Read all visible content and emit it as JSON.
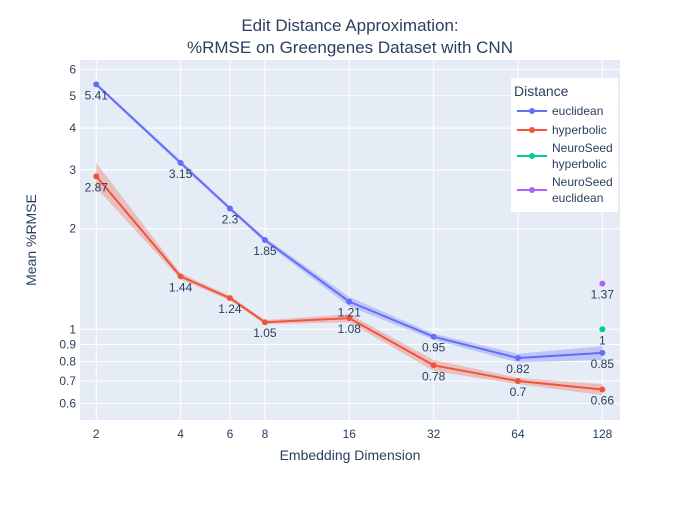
{
  "chart_data": {
    "type": "line",
    "title_line1": "Edit Distance Approximation:",
    "title_line2": "%RMSE on Greengenes Dataset with CNN",
    "xlabel": "Embedding Dimension",
    "ylabel": "Mean %RMSE",
    "x_scale": "log2",
    "y_scale": "log10",
    "xlim": [
      1.75,
      148
    ],
    "ylim": [
      0.535,
      6.4
    ],
    "x_ticks": [
      2,
      4,
      6,
      8,
      16,
      32,
      64,
      128
    ],
    "x_tick_labels": [
      "2",
      "4",
      "6",
      "8",
      "16",
      "32",
      "64",
      "128"
    ],
    "y_ticks": [
      0.6,
      0.7,
      0.8,
      0.9,
      1,
      2,
      3,
      4,
      5,
      6
    ],
    "y_tick_labels": [
      "0.6",
      "0.7",
      "0.8",
      "0.9",
      "1",
      "2",
      "3",
      "4",
      "5",
      "6"
    ],
    "grid": true,
    "legend_title": "Distance",
    "legend_position": "top-right",
    "series": [
      {
        "name": "euclidean",
        "color": "#636efa",
        "band_color": "rgba(99,110,250,0.30)",
        "x": [
          2,
          4,
          6,
          8,
          16,
          32,
          64,
          128
        ],
        "y": [
          5.41,
          3.15,
          2.3,
          1.85,
          1.21,
          0.95,
          0.82,
          0.85
        ],
        "lower": [
          5.35,
          3.1,
          2.27,
          1.82,
          1.17,
          0.93,
          0.795,
          0.81
        ],
        "upper": [
          5.47,
          3.2,
          2.33,
          1.88,
          1.25,
          0.97,
          0.845,
          0.89
        ],
        "labels": [
          "5.41",
          "3.15",
          "2.3",
          "1.85",
          "1.21",
          "0.95",
          "0.82",
          "0.85"
        ],
        "mode": "lines+markers"
      },
      {
        "name": "hyperbolic",
        "color": "#ef553b",
        "band_color": "rgba(239,85,59,0.30)",
        "x": [
          2,
          4,
          6,
          8,
          16,
          32,
          64,
          128
        ],
        "y": [
          2.87,
          1.44,
          1.24,
          1.05,
          1.08,
          0.78,
          0.7,
          0.66
        ],
        "lower": [
          2.65,
          1.41,
          1.22,
          1.035,
          1.05,
          0.75,
          0.685,
          0.635
        ],
        "upper": [
          3.15,
          1.47,
          1.26,
          1.065,
          1.11,
          0.81,
          0.715,
          0.685
        ],
        "labels": [
          "2.87",
          "1.44",
          "1.24",
          "1.05",
          "1.08",
          "0.78",
          "0.7",
          "0.66"
        ],
        "mode": "lines+markers"
      },
      {
        "name_line1": "NeuroSeed",
        "name_line2": "hyperbolic",
        "color": "#00cc96",
        "x": [
          128
        ],
        "y": [
          1.0
        ],
        "labels": [
          "1"
        ],
        "mode": "markers"
      },
      {
        "name_line1": "NeuroSeed",
        "name_line2": "euclidean",
        "color": "#ab63fa",
        "x": [
          128
        ],
        "y": [
          1.37
        ],
        "labels": [
          "1.37"
        ],
        "mode": "markers"
      }
    ]
  },
  "colors": {
    "plot_background": "#e5ecf6",
    "grid": "#ffffff",
    "text": "#2a3f5f"
  }
}
